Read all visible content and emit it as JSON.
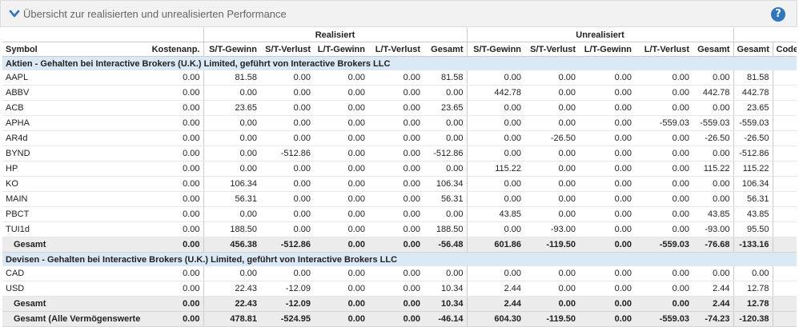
{
  "header": {
    "title": "Übersicht zur realisierten und unrealisierten Performance",
    "help": "?"
  },
  "groups": {
    "realized": "Realisiert",
    "unrealized": "Unrealisiert"
  },
  "columns": [
    "Symbol",
    "Kostenanp.",
    "S/T-Gewinn",
    "S/T-Verlust",
    "L/T-Gewinn",
    "L/T-Verlust",
    "Gesamt",
    "S/T-Gewinn",
    "S/T-Verlust",
    "L/T-Gewinn",
    "L/T-Verlust",
    "Gesamt",
    "Gesamt",
    "Code"
  ],
  "sections": [
    {
      "title": "Aktien - Gehalten bei Interactive Brokers (U.K.) Limited, geführt von Interactive Brokers LLC",
      "rows": [
        [
          "AAPL",
          "0.00",
          "81.58",
          "0.00",
          "0.00",
          "0.00",
          "81.58",
          "0.00",
          "0.00",
          "0.00",
          "0.00",
          "0.00",
          "81.58",
          ""
        ],
        [
          "ABBV",
          "0.00",
          "0.00",
          "0.00",
          "0.00",
          "0.00",
          "0.00",
          "442.78",
          "0.00",
          "0.00",
          "0.00",
          "442.78",
          "442.78",
          ""
        ],
        [
          "ACB",
          "0.00",
          "23.65",
          "0.00",
          "0.00",
          "0.00",
          "23.65",
          "0.00",
          "0.00",
          "0.00",
          "0.00",
          "0.00",
          "23.65",
          ""
        ],
        [
          "APHA",
          "0.00",
          "0.00",
          "0.00",
          "0.00",
          "0.00",
          "0.00",
          "0.00",
          "0.00",
          "0.00",
          "-559.03",
          "-559.03",
          "-559.03",
          ""
        ],
        [
          "AR4d",
          "0.00",
          "0.00",
          "0.00",
          "0.00",
          "0.00",
          "0.00",
          "0.00",
          "-26.50",
          "0.00",
          "0.00",
          "-26.50",
          "-26.50",
          ""
        ],
        [
          "BYND",
          "0.00",
          "0.00",
          "-512.86",
          "0.00",
          "0.00",
          "-512.86",
          "0.00",
          "0.00",
          "0.00",
          "0.00",
          "0.00",
          "-512.86",
          ""
        ],
        [
          "HP",
          "0.00",
          "0.00",
          "0.00",
          "0.00",
          "0.00",
          "0.00",
          "115.22",
          "0.00",
          "0.00",
          "0.00",
          "115.22",
          "115.22",
          ""
        ],
        [
          "KO",
          "0.00",
          "106.34",
          "0.00",
          "0.00",
          "0.00",
          "106.34",
          "0.00",
          "0.00",
          "0.00",
          "0.00",
          "0.00",
          "106.34",
          ""
        ],
        [
          "MAIN",
          "0.00",
          "56.31",
          "0.00",
          "0.00",
          "0.00",
          "56.31",
          "0.00",
          "0.00",
          "0.00",
          "0.00",
          "0.00",
          "56.31",
          ""
        ],
        [
          "PBCT",
          "0.00",
          "0.00",
          "0.00",
          "0.00",
          "0.00",
          "0.00",
          "43.85",
          "0.00",
          "0.00",
          "0.00",
          "43.85",
          "43.85",
          ""
        ],
        [
          "TUI1d",
          "0.00",
          "188.50",
          "0.00",
          "0.00",
          "0.00",
          "188.50",
          "0.00",
          "-93.00",
          "0.00",
          "0.00",
          "-93.00",
          "95.50",
          ""
        ]
      ],
      "total": [
        "Gesamt",
        "0.00",
        "456.38",
        "-512.86",
        "0.00",
        "0.00",
        "-56.48",
        "601.86",
        "-119.50",
        "0.00",
        "-559.03",
        "-76.68",
        "-133.16",
        ""
      ]
    },
    {
      "title": "Devisen - Gehalten bei Interactive Brokers (U.K.) Limited, geführt von Interactive Brokers LLC",
      "rows": [
        [
          "CAD",
          "0.00",
          "0.00",
          "0.00",
          "0.00",
          "0.00",
          "0.00",
          "0.00",
          "0.00",
          "0.00",
          "0.00",
          "0.00",
          "0.00",
          ""
        ],
        [
          "USD",
          "0.00",
          "22.43",
          "-12.09",
          "0.00",
          "0.00",
          "10.34",
          "2.44",
          "0.00",
          "0.00",
          "0.00",
          "2.44",
          "12.78",
          ""
        ]
      ],
      "total": [
        "Gesamt",
        "0.00",
        "22.43",
        "-12.09",
        "0.00",
        "0.00",
        "10.34",
        "2.44",
        "0.00",
        "0.00",
        "0.00",
        "2.44",
        "12.78",
        ""
      ]
    }
  ],
  "grand_total": [
    "Gesamt (Alle Vermögenswerte)",
    "0.00",
    "478.81",
    "-524.95",
    "0.00",
    "0.00",
    "-46.14",
    "604.30",
    "-119.50",
    "0.00",
    "-559.03",
    "-74.23",
    "-120.38",
    ""
  ]
}
